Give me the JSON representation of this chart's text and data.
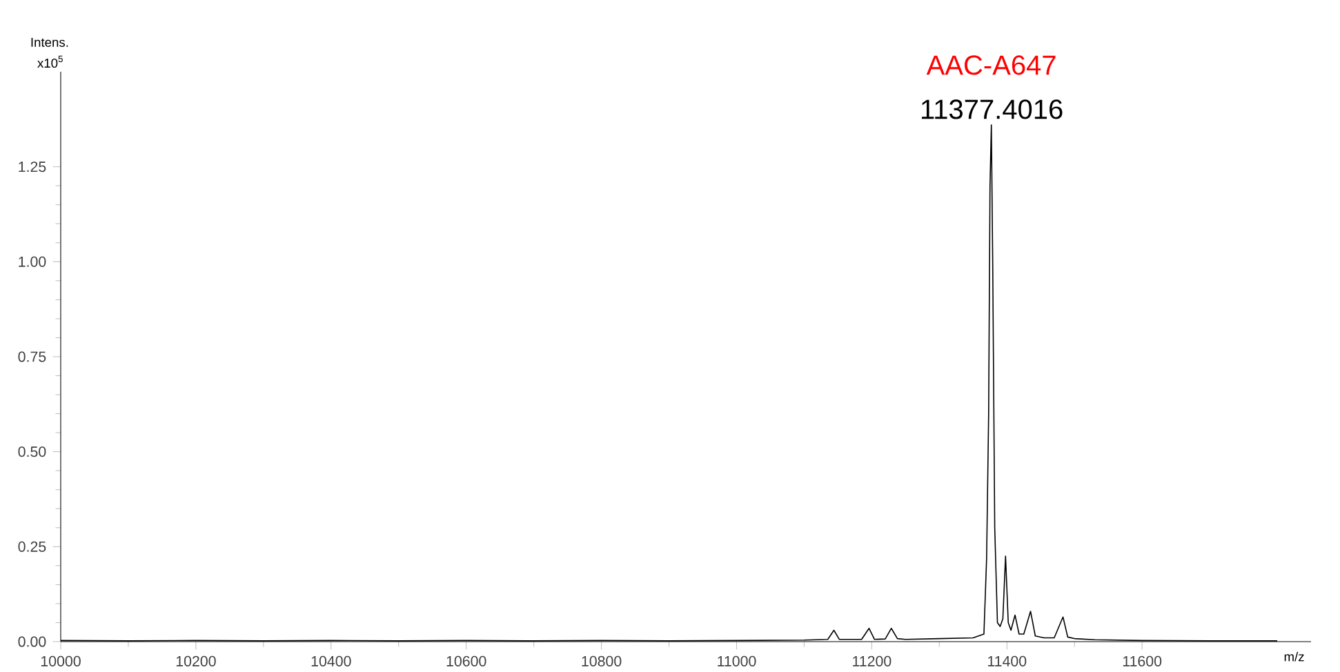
{
  "chart_data": {
    "type": "line",
    "xlabel": "m/z",
    "ylabel": "Intens.",
    "annotations": [
      {
        "text": "AAC-A647",
        "x": 11377.4016,
        "y": 1.36
      },
      {
        "text": "11377.4016",
        "x": 11377.4016,
        "y": 1.36
      },
      "x10$^{5}$"
    ],
    "x": [
      10000,
      10100,
      10200,
      10300,
      10400,
      10500,
      10600,
      10700,
      10800,
      10900,
      11000,
      11100,
      11135,
      11144,
      11152,
      11185,
      11196,
      11204,
      11220,
      11229,
      11238,
      11250,
      11300,
      11350,
      11366,
      11370,
      11373,
      11375,
      11377,
      11379,
      11382,
      11386,
      11390,
      11394,
      11398,
      11402,
      11406,
      11412,
      11418,
      11425,
      11435,
      11442,
      11455,
      11470,
      11483,
      11490,
      11500,
      11530,
      11600,
      11700,
      11800
    ],
    "series": [
      {
        "color": "#000000",
        "values": [
          0.003,
          0.002,
          0.003,
          0.002,
          0.003,
          0.002,
          0.003,
          0.002,
          0.003,
          0.002,
          0.003,
          0.004,
          0.006,
          0.03,
          0.006,
          0.006,
          0.035,
          0.006,
          0.007,
          0.035,
          0.008,
          0.006,
          0.008,
          0.01,
          0.02,
          0.22,
          0.6,
          1.2,
          1.36,
          1.0,
          0.3,
          0.05,
          0.04,
          0.06,
          0.225,
          0.05,
          0.03,
          0.07,
          0.02,
          0.02,
          0.08,
          0.015,
          0.01,
          0.01,
          0.065,
          0.012,
          0.008,
          0.005,
          0.003,
          0.002,
          0.002
        ]
      }
    ],
    "xlim": [
      10000,
      11850
    ],
    "ylim": [
      0,
      1.5
    ],
    "xticks": [
      10000,
      10200,
      10400,
      10600,
      10800,
      11000,
      11200,
      11400,
      11600
    ],
    "yticks": [
      {
        "value": 0,
        "label": "0.00"
      },
      {
        "value": 0.25,
        "label": "0.25"
      },
      {
        "value": 0.5,
        "label": "0.50"
      },
      {
        "value": 0.75,
        "label": "0.75"
      },
      {
        "value": 1.0,
        "label": "1.00"
      },
      {
        "value": 1.25,
        "label": "1.25"
      }
    ],
    "grid": false,
    "marker": "none",
    "line_style": "solid"
  }
}
